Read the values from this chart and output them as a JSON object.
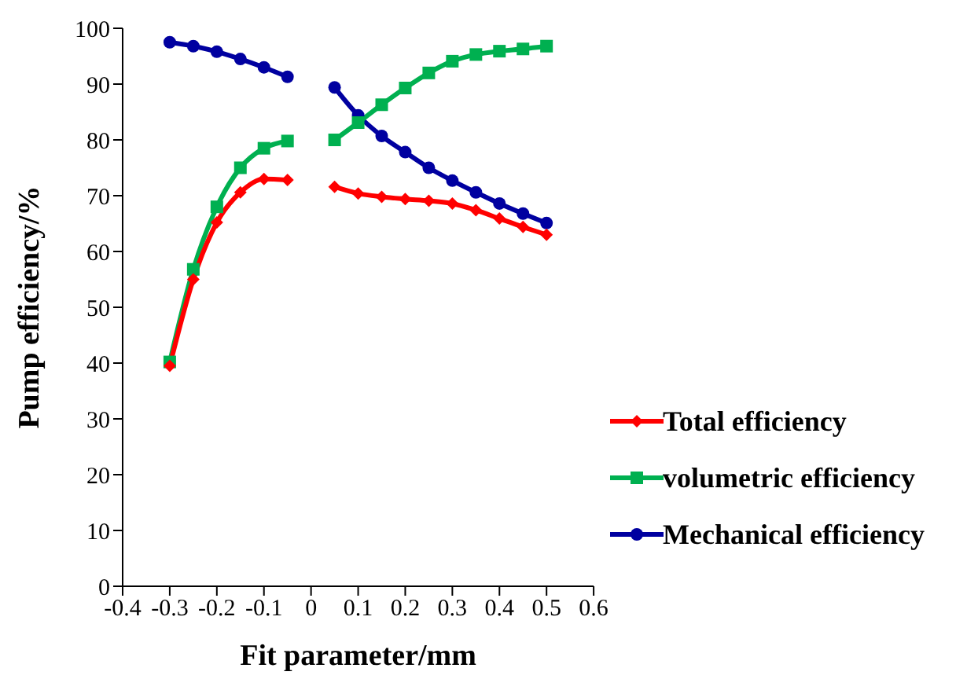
{
  "chart_data": {
    "type": "line",
    "xlabel": "Fit parameter/mm",
    "ylabel": "Pump efficiency/%",
    "x": [
      -0.3,
      -0.25,
      -0.2,
      -0.15,
      -0.1,
      -0.05,
      0,
      0.05,
      0.1,
      0.15,
      0.2,
      0.25,
      0.3,
      0.35,
      0.4,
      0.45,
      0.5
    ],
    "series": [
      {
        "name": "Total efficiency",
        "color": "#ff0000",
        "marker": "diamond",
        "values": [
          39.5,
          55,
          65.2,
          70.6,
          73,
          72.8,
          null,
          71.6,
          70.4,
          69.8,
          69.4,
          69.1,
          68.6,
          67.4,
          65.9,
          64.4,
          63
        ]
      },
      {
        "name": "volumetric efficiency",
        "color": "#00b050",
        "marker": "square",
        "values": [
          40.2,
          56.8,
          68,
          75,
          78.5,
          79.8,
          null,
          80,
          83.1,
          86.3,
          89.3,
          92,
          94.1,
          95.3,
          95.9,
          96.3,
          96.8
        ]
      },
      {
        "name": "Mechanical efficiency",
        "color": "#0000a0",
        "marker": "circle",
        "values": [
          97.5,
          96.8,
          95.8,
          94.5,
          93,
          91.3,
          null,
          89.4,
          84.4,
          80.7,
          77.8,
          75,
          72.7,
          70.6,
          68.6,
          66.8,
          65.1
        ]
      }
    ],
    "xlim": [
      -0.4,
      0.6
    ],
    "xticks": [
      -0.4,
      -0.3,
      -0.2,
      -0.1,
      0,
      0.1,
      0.2,
      0.3,
      0.4,
      0.5,
      0.6
    ],
    "ylim": [
      0,
      100
    ],
    "yticks": [
      0,
      10,
      20,
      30,
      40,
      50,
      60,
      70,
      80,
      90,
      100
    ],
    "grid": false,
    "legend": "bottom right",
    "line_style": "solid"
  }
}
